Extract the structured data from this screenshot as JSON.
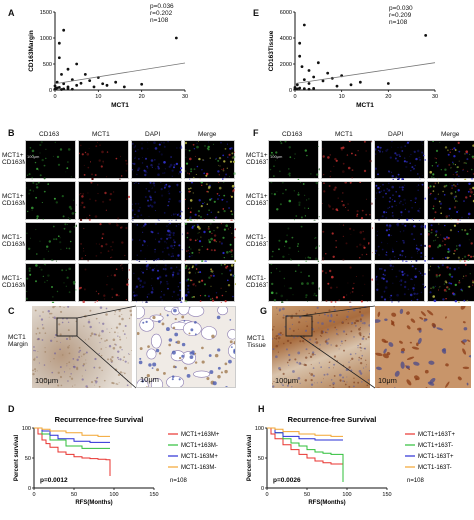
{
  "panelA": {
    "label": "A",
    "ylabel": "CD163Margin",
    "xlabel": "MCT1",
    "stats": [
      "p=0.036",
      "r=0.202",
      "n=108"
    ],
    "yticks": [
      "1500",
      "1000",
      "500",
      "0"
    ],
    "xticks": [
      "0",
      "10",
      "20",
      "30"
    ]
  },
  "panelE": {
    "label": "E",
    "ylabel": "CD163Tissue",
    "xlabel": "MCT1",
    "stats": [
      "p=0.030",
      "r=0.209",
      "n=108"
    ],
    "yticks": [
      "6000",
      "4000",
      "2000",
      "0"
    ],
    "xticks": [
      "0",
      "10",
      "20",
      "30"
    ]
  },
  "panelB": {
    "label": "B",
    "headers": [
      "CD163",
      "MCT1",
      "DAPI",
      "Merge"
    ],
    "rows": [
      "MCT1+\nCD163M+",
      "MCT1+\nCD163M-",
      "MCT1-\nCD163M+",
      "MCT1-\nCD163M-"
    ],
    "scale": "100μm"
  },
  "panelF": {
    "label": "F",
    "headers": [
      "CD163",
      "MCT1",
      "DAPI",
      "Merge"
    ],
    "rows": [
      "MCT1+\nCD163T+",
      "MCT1+\nCD163T-",
      "MCT1-\nCD163T+",
      "MCT1-\nCD163T-"
    ],
    "scale": "100μm"
  },
  "panelC": {
    "label": "C",
    "title": "MCT1\nMargin",
    "scale_big": "100μm",
    "scale_small": "10μm"
  },
  "panelG": {
    "label": "G",
    "title": "MCT1\nTissue",
    "scale_big": "100μm",
    "scale_small": "10μm"
  },
  "panelD": {
    "label": "D",
    "title": "Recurrence-free Survival",
    "ylabel": "Percent survival",
    "xlabel": "RFS(Months)",
    "pval": "p=0.0012",
    "n": "n=108",
    "yticks": [
      "100",
      "50",
      "0"
    ],
    "xticks": [
      "0",
      "50",
      "100",
      "150"
    ],
    "legend": [
      "MCT1+163M+",
      "MCT1+163M-",
      "MCT1-163M+",
      "MCT1-163M-"
    ]
  },
  "panelH": {
    "label": "H",
    "title": "Recurrence-free Survival",
    "ylabel": "Percent survival",
    "xlabel": "RFS(Months)",
    "pval": "p=0.0026",
    "n": "n=108",
    "yticks": [
      "100",
      "50",
      "0"
    ],
    "xticks": [
      "0",
      "50",
      "100",
      "150"
    ],
    "legend": [
      "MCT1+163T+",
      "MCT1+163T-",
      "MCT1-163T+",
      "MCT1-163T-"
    ]
  },
  "colors": {
    "red": "#e8332f",
    "green": "#2fbf3a",
    "blue": "#2a2fd6",
    "orange": "#f2a531"
  },
  "chart_data": [
    {
      "type": "scatter",
      "panel": "A",
      "xlabel": "MCT1",
      "ylabel": "CD163Margin",
      "xlim": [
        0,
        30
      ],
      "ylim": [
        0,
        1500
      ],
      "points": [
        [
          0,
          80
        ],
        [
          0.5,
          150
        ],
        [
          1,
          620
        ],
        [
          1,
          900
        ],
        [
          1.5,
          300
        ],
        [
          2,
          120
        ],
        [
          2,
          1150
        ],
        [
          3,
          400
        ],
        [
          3,
          60
        ],
        [
          4,
          200
        ],
        [
          5,
          500
        ],
        [
          5,
          90
        ],
        [
          6,
          130
        ],
        [
          7,
          300
        ],
        [
          8,
          180
        ],
        [
          9,
          60
        ],
        [
          10,
          240
        ],
        [
          11,
          120
        ],
        [
          12,
          90
        ],
        [
          14,
          150
        ],
        [
          16,
          60
        ],
        [
          20,
          110
        ],
        [
          28,
          1000
        ],
        [
          0,
          20
        ],
        [
          0.2,
          30
        ],
        [
          0.5,
          40
        ],
        [
          1,
          50
        ],
        [
          1.5,
          10
        ],
        [
          2,
          20
        ],
        [
          3,
          30
        ],
        [
          4,
          15
        ]
      ],
      "fit": [
        [
          0,
          120
        ],
        [
          30,
          520
        ]
      ]
    },
    {
      "type": "scatter",
      "panel": "E",
      "xlabel": "MCT1",
      "ylabel": "CD163Tissue",
      "xlim": [
        0,
        30
      ],
      "ylim": [
        0,
        6000
      ],
      "points": [
        [
          0,
          200
        ],
        [
          0.5,
          400
        ],
        [
          1,
          2600
        ],
        [
          1,
          3600
        ],
        [
          1.5,
          1800
        ],
        [
          2,
          800
        ],
        [
          2,
          5000
        ],
        [
          3,
          1500
        ],
        [
          3,
          500
        ],
        [
          4,
          1000
        ],
        [
          5,
          2100
        ],
        [
          6,
          700
        ],
        [
          7,
          1300
        ],
        [
          8,
          900
        ],
        [
          9,
          300
        ],
        [
          10,
          1100
        ],
        [
          12,
          400
        ],
        [
          14,
          600
        ],
        [
          20,
          500
        ],
        [
          28,
          4200
        ],
        [
          0,
          100
        ],
        [
          0.5,
          80
        ],
        [
          1,
          150
        ],
        [
          2,
          100
        ],
        [
          3,
          60
        ],
        [
          4,
          120
        ]
      ],
      "fit": [
        [
          0,
          500
        ],
        [
          30,
          2100
        ]
      ]
    },
    {
      "type": "line",
      "panel": "D",
      "xlabel": "RFS(Months)",
      "ylabel": "Percent survival",
      "xlim": [
        0,
        150
      ],
      "ylim": [
        0,
        100
      ],
      "series": [
        {
          "name": "MCT1+163M+",
          "x": [
            0,
            5,
            10,
            15,
            20,
            30,
            40,
            50,
            60,
            70,
            80,
            90,
            95
          ],
          "y": [
            100,
            90,
            80,
            74,
            68,
            60,
            56,
            52,
            50,
            49,
            48,
            47,
            20
          ]
        },
        {
          "name": "MCT1+163M-",
          "x": [
            0,
            10,
            20,
            40,
            60,
            80,
            95
          ],
          "y": [
            100,
            90,
            80,
            70,
            66,
            66,
            66
          ]
        },
        {
          "name": "MCT1-163M+",
          "x": [
            0,
            10,
            20,
            30,
            50,
            70,
            95
          ],
          "y": [
            100,
            95,
            88,
            82,
            78,
            76,
            76
          ]
        },
        {
          "name": "MCT1-163M-",
          "x": [
            0,
            10,
            20,
            40,
            60,
            80,
            95
          ],
          "y": [
            100,
            98,
            95,
            92,
            88,
            86,
            86
          ]
        }
      ]
    },
    {
      "type": "line",
      "panel": "H",
      "xlabel": "RFS(Months)",
      "ylabel": "Percent survival",
      "xlim": [
        0,
        150
      ],
      "ylim": [
        0,
        100
      ],
      "series": [
        {
          "name": "MCT1+163T+",
          "x": [
            0,
            5,
            10,
            20,
            30,
            40,
            50,
            60,
            70,
            80,
            90,
            95
          ],
          "y": [
            100,
            90,
            82,
            72,
            64,
            56,
            50,
            45,
            42,
            40,
            40,
            40
          ]
        },
        {
          "name": "MCT1+163T-",
          "x": [
            0,
            10,
            20,
            30,
            40,
            50,
            60,
            70,
            80,
            90,
            95
          ],
          "y": [
            100,
            92,
            82,
            75,
            70,
            64,
            60,
            58,
            56,
            56,
            10
          ]
        },
        {
          "name": "MCT1-163T+",
          "x": [
            0,
            10,
            20,
            40,
            60,
            80,
            95
          ],
          "y": [
            100,
            92,
            86,
            82,
            80,
            80,
            80
          ]
        },
        {
          "name": "MCT1-163T-",
          "x": [
            0,
            10,
            20,
            40,
            60,
            80,
            95
          ],
          "y": [
            100,
            98,
            94,
            90,
            88,
            86,
            86
          ]
        }
      ]
    }
  ]
}
